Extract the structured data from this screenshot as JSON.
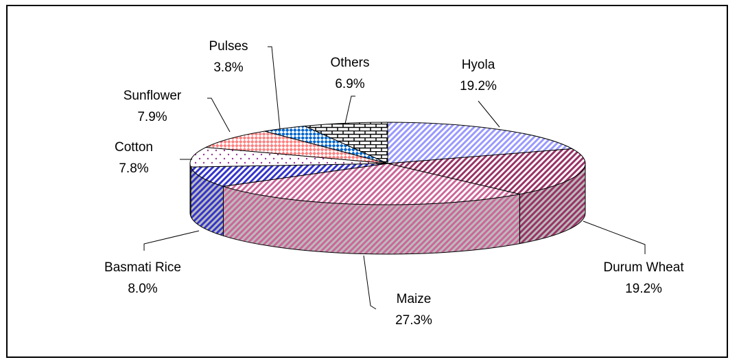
{
  "chart_data": {
    "type": "pie3d",
    "categories": [
      "Hyola",
      "Durum Wheat",
      "Maize",
      "Basmati Rice",
      "Cotton",
      "Sunflower",
      "Pulses",
      "Others"
    ],
    "values": [
      19.2,
      19.2,
      27.3,
      8,
      7.8,
      7.9,
      3.8,
      6.9
    ],
    "value_labels": [
      "19.2%",
      "19.2%",
      "27.3%",
      "8.0%",
      "7.8%",
      "7.9%",
      "3.8%",
      "6.9%"
    ],
    "colors": [
      "#9999ff",
      "#993366",
      "#cc6699",
      "#3333cc",
      "#993399",
      "#ff8080",
      "#0066cc",
      "#000000"
    ],
    "patterns": [
      "diagonal",
      "diagonal",
      "diagonal",
      "diagonal",
      "dots",
      "checker",
      "checker",
      "brick"
    ]
  }
}
